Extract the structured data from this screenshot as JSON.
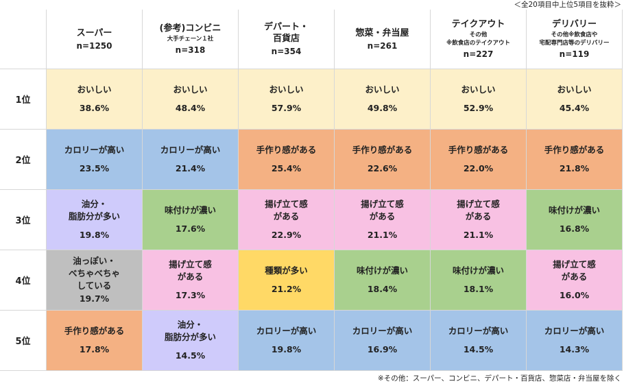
{
  "top_note": "＜全20項目中上位5項目を抜粋＞",
  "footnote": "※その他：スーパー、コンビニ、デパート・百貨店、惣菜店・弁当屋を除く",
  "colors": {
    "おいしい": "#fdf0c9",
    "カロリーが高い": "#a4c4e8",
    "手作り感がある": "#f4b183",
    "油分・脂肪分が多い": "#cfcbfb",
    "味付けが濃い": "#a9d08e",
    "揚げ立て感がある": "#f8c1e3",
    "油っぽい・べちゃべちゃしている": "#bfbfbf",
    "種類が多い": "#ffd966"
  },
  "chart_data": {
    "type": "table",
    "columns": [
      {
        "name": "スーパー",
        "sub": "",
        "n": "n=1250"
      },
      {
        "name": "(参考)コンビニ",
        "sub": "大手チェーン１社",
        "n": "n=318"
      },
      {
        "name": "デパート・\n百貨店",
        "sub": "",
        "n": "n=354"
      },
      {
        "name": "惣菜・弁当屋",
        "sub": "",
        "n": "n=261"
      },
      {
        "name": "テイクアウト",
        "sub": "その他\n※飲食店のテイクアウト",
        "n": "n=227"
      },
      {
        "name": "デリバリー",
        "sub": "その他※飲食店や\n宅配専門店等のデリバリー",
        "n": "n=119"
      }
    ],
    "rows": [
      {
        "rank": "1位",
        "cells": [
          {
            "label": "おいしい",
            "value": 38.6,
            "display": "38.6%",
            "key": "おいしい"
          },
          {
            "label": "おいしい",
            "value": 48.4,
            "display": "48.4%",
            "key": "おいしい"
          },
          {
            "label": "おいしい",
            "value": 57.9,
            "display": "57.9%",
            "key": "おいしい"
          },
          {
            "label": "おいしい",
            "value": 49.8,
            "display": "49.8%",
            "key": "おいしい"
          },
          {
            "label": "おいしい",
            "value": 52.9,
            "display": "52.9%",
            "key": "おいしい"
          },
          {
            "label": "おいしい",
            "value": 45.4,
            "display": "45.4%",
            "key": "おいしい"
          }
        ]
      },
      {
        "rank": "2位",
        "cells": [
          {
            "label": "カロリーが高い",
            "value": 23.5,
            "display": "23.5%",
            "key": "カロリーが高い"
          },
          {
            "label": "カロリーが高い",
            "value": 21.4,
            "display": "21.4%",
            "key": "カロリーが高い"
          },
          {
            "label": "手作り感がある",
            "value": 25.4,
            "display": "25.4%",
            "key": "手作り感がある"
          },
          {
            "label": "手作り感がある",
            "value": 22.6,
            "display": "22.6%",
            "key": "手作り感がある"
          },
          {
            "label": "手作り感がある",
            "value": 22.0,
            "display": "22.0%",
            "key": "手作り感がある"
          },
          {
            "label": "手作り感がある",
            "value": 21.8,
            "display": "21.8%",
            "key": "手作り感がある"
          }
        ]
      },
      {
        "rank": "3位",
        "cells": [
          {
            "label": "油分・\n脂肪分が多い",
            "value": 19.8,
            "display": "19.8%",
            "key": "油分・脂肪分が多い"
          },
          {
            "label": "味付けが濃い",
            "value": 17.6,
            "display": "17.6%",
            "key": "味付けが濃い"
          },
          {
            "label": "揚げ立て感\nがある",
            "value": 22.9,
            "display": "22.9%",
            "key": "揚げ立て感がある"
          },
          {
            "label": "揚げ立て感\nがある",
            "value": 21.1,
            "display": "21.1%",
            "key": "揚げ立て感がある"
          },
          {
            "label": "揚げ立て感\nがある",
            "value": 21.1,
            "display": "21.1%",
            "key": "揚げ立て感がある"
          },
          {
            "label": "味付けが濃い",
            "value": 16.8,
            "display": "16.8%",
            "key": "味付けが濃い"
          }
        ]
      },
      {
        "rank": "4位",
        "cells": [
          {
            "label": "油っぽい・\nべちゃべちゃ\nしている",
            "value": 19.7,
            "display": "19.7%",
            "key": "油っぽい・べちゃべちゃしている"
          },
          {
            "label": "揚げ立て感\nがある",
            "value": 17.3,
            "display": "17.3%",
            "key": "揚げ立て感がある"
          },
          {
            "label": "種類が多い",
            "value": 21.2,
            "display": "21.2%",
            "key": "種類が多い"
          },
          {
            "label": "味付けが濃い",
            "value": 18.4,
            "display": "18.4%",
            "key": "味付けが濃い"
          },
          {
            "label": "味付けが濃い",
            "value": 18.1,
            "display": "18.1%",
            "key": "味付けが濃い"
          },
          {
            "label": "揚げ立て感\nがある",
            "value": 16.0,
            "display": "16.0%",
            "key": "揚げ立て感がある"
          }
        ]
      },
      {
        "rank": "5位",
        "cells": [
          {
            "label": "手作り感がある",
            "value": 17.8,
            "display": "17.8%",
            "key": "手作り感がある"
          },
          {
            "label": "油分・\n脂肪分が多い",
            "value": 14.5,
            "display": "14.5%",
            "key": "油分・脂肪分が多い"
          },
          {
            "label": "カロリーが高い",
            "value": 19.8,
            "display": "19.8%",
            "key": "カロリーが高い"
          },
          {
            "label": "カロリーが高い",
            "value": 16.9,
            "display": "16.9%",
            "key": "カロリーが高い"
          },
          {
            "label": "カロリーが高い",
            "value": 14.5,
            "display": "14.5%",
            "key": "カロリーが高い"
          },
          {
            "label": "カロリーが高い",
            "value": 14.3,
            "display": "14.3%",
            "key": "カロリーが高い"
          }
        ]
      }
    ]
  }
}
